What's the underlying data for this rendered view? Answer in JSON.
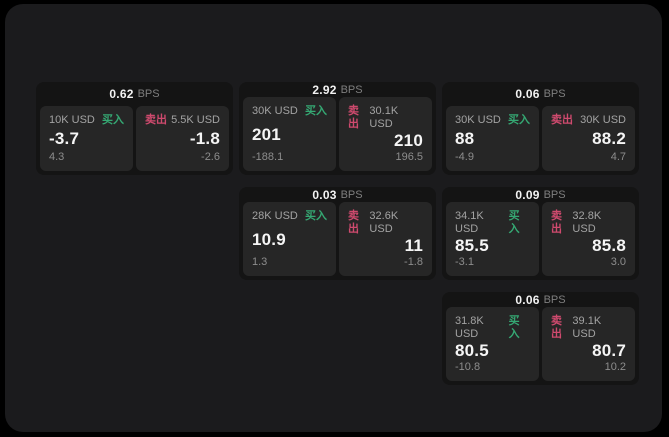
{
  "page": {
    "background": "#000000",
    "window_background": "#1b1b1d",
    "card_background": "#141414",
    "panel_background": "#262626",
    "buy_color": "#35a873",
    "sell_color": "#cf4a6e"
  },
  "cards": [
    {
      "bps_value": "0.62",
      "bps_label": "BPS",
      "buy": {
        "amount": "10K USD",
        "side_label": "买入",
        "value": "-3.7",
        "sub_value": "4.3"
      },
      "sell": {
        "side_label": "卖出",
        "amount": "5.5K USD",
        "value": "-1.8",
        "sub_value": "-2.6"
      }
    },
    {
      "bps_value": "2.92",
      "bps_label": "BPS",
      "buy": {
        "amount": "30K USD",
        "side_label": "买入",
        "value": "201",
        "sub_value": "-188.1"
      },
      "sell": {
        "side_label": "卖出",
        "amount": "30.1K USD",
        "value": "210",
        "sub_value": "196.5"
      }
    },
    {
      "bps_value": "0.06",
      "bps_label": "BPS",
      "buy": {
        "amount": "30K USD",
        "side_label": "买入",
        "value": "88",
        "sub_value": "-4.9"
      },
      "sell": {
        "side_label": "卖出",
        "amount": "30K USD",
        "value": "88.2",
        "sub_value": "4.7"
      }
    },
    {
      "bps_value": "0.03",
      "bps_label": "BPS",
      "buy": {
        "amount": "28K USD",
        "side_label": "买入",
        "value": "10.9",
        "sub_value": "1.3"
      },
      "sell": {
        "side_label": "卖出",
        "amount": "32.6K USD",
        "value": "11",
        "sub_value": "-1.8"
      }
    },
    {
      "bps_value": "0.09",
      "bps_label": "BPS",
      "buy": {
        "amount": "34.1K USD",
        "side_label": "买入",
        "value": "85.5",
        "sub_value": "-3.1"
      },
      "sell": {
        "side_label": "卖出",
        "amount": "32.8K USD",
        "value": "85.8",
        "sub_value": "3.0"
      }
    },
    {
      "bps_value": "0.06",
      "bps_label": "BPS",
      "buy": {
        "amount": "31.8K USD",
        "side_label": "买入",
        "value": "80.5",
        "sub_value": "-10.8"
      },
      "sell": {
        "side_label": "卖出",
        "amount": "39.1K USD",
        "value": "80.7",
        "sub_value": "10.2"
      }
    }
  ]
}
